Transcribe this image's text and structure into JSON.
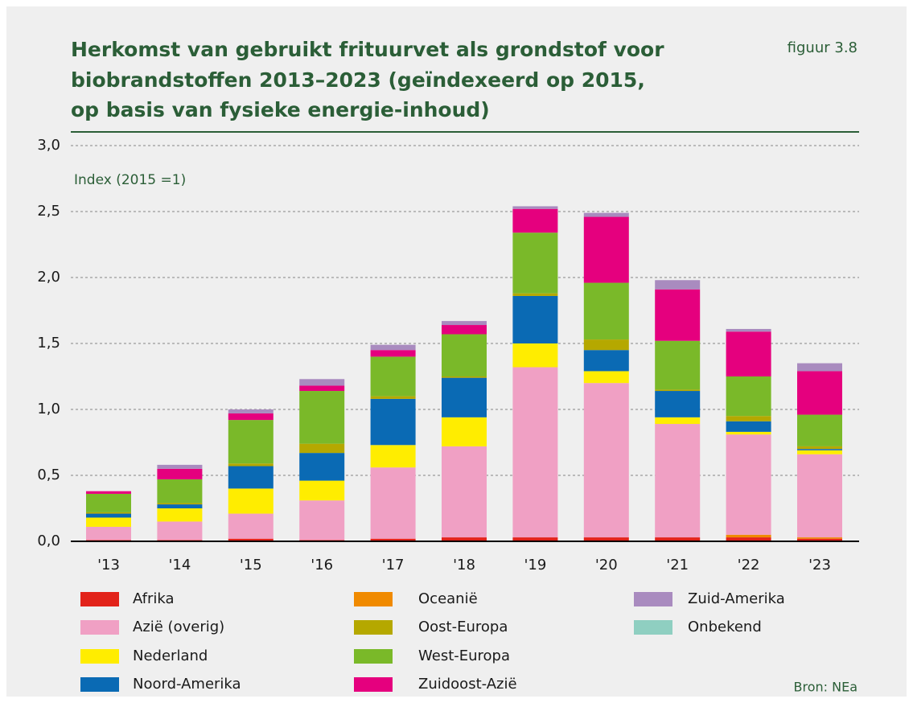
{
  "chart_data": {
    "type": "stacked_bar",
    "title": [
      "Herkomst van gebruikt frituurvet als grondstof voor",
      "biobrandstoffen 2013–2023 (geïndexeerd op 2015,",
      "op basis van fysieke energie-inhoud)"
    ],
    "figure_label": "figuur 3.8",
    "y_axis_label": "Index (2015 =1)",
    "source": "Bron: NEa",
    "categories": [
      "'13",
      "'14",
      "'15",
      "'16",
      "'17",
      "'18",
      "'19",
      "'20",
      "'21",
      "'22",
      "'23"
    ],
    "series": [
      {
        "name": "Afrika",
        "color": "#e2231a",
        "values": [
          0.01,
          0.01,
          0.02,
          0.01,
          0.02,
          0.03,
          0.03,
          0.03,
          0.03,
          0.03,
          0.02
        ]
      },
      {
        "name": "Azië (overig)",
        "color": "#f0a0c4",
        "values": [
          0.1,
          0.14,
          0.19,
          0.3,
          0.54,
          0.69,
          1.29,
          1.17,
          0.86,
          0.76,
          0.63
        ]
      },
      {
        "name": "Nederland",
        "color": "#ffed00",
        "values": [
          0.07,
          0.1,
          0.19,
          0.15,
          0.17,
          0.22,
          0.18,
          0.09,
          0.05,
          0.02,
          0.03
        ]
      },
      {
        "name": "Noord-Amerika",
        "color": "#0a6ab4",
        "values": [
          0.03,
          0.03,
          0.17,
          0.21,
          0.35,
          0.3,
          0.36,
          0.16,
          0.2,
          0.08,
          0.01
        ]
      },
      {
        "name": "Oceanië",
        "color": "#f08a00",
        "values": [
          0,
          0,
          0,
          0,
          0,
          0,
          0,
          0,
          0,
          0.02,
          0.01
        ]
      },
      {
        "name": "Oost-Europa",
        "color": "#b5a800",
        "values": [
          0.01,
          0.01,
          0.02,
          0.07,
          0.02,
          0.01,
          0.02,
          0.08,
          0.01,
          0.04,
          0.02
        ]
      },
      {
        "name": "West-Europa",
        "color": "#7ab929",
        "values": [
          0.14,
          0.18,
          0.33,
          0.4,
          0.3,
          0.32,
          0.46,
          0.43,
          0.37,
          0.3,
          0.24
        ]
      },
      {
        "name": "Zuidoost-Azië",
        "color": "#e5007e",
        "values": [
          0.02,
          0.08,
          0.05,
          0.04,
          0.05,
          0.07,
          0.18,
          0.5,
          0.39,
          0.34,
          0.33
        ]
      },
      {
        "name": "Zuid-Amerika",
        "color": "#a98bbf",
        "values": [
          0,
          0.03,
          0.03,
          0.05,
          0.04,
          0.03,
          0.02,
          0.03,
          0.07,
          0.02,
          0.06
        ]
      },
      {
        "name": "Onbekend",
        "color": "#8fcfc1",
        "values": [
          0,
          0,
          0,
          0,
          0,
          0,
          0,
          0,
          0,
          0,
          0
        ]
      }
    ],
    "ylim": [
      0,
      3
    ],
    "yticks": [
      {
        "value": 0,
        "label": "0,0"
      },
      {
        "value": 0.5,
        "label": "0,5"
      },
      {
        "value": 1,
        "label": "1,0"
      },
      {
        "value": 1.5,
        "label": "1,5"
      },
      {
        "value": 2,
        "label": "2,0"
      },
      {
        "value": 2.5,
        "label": "2,5"
      },
      {
        "value": 3,
        "label": "3,0"
      }
    ],
    "grid": true
  }
}
